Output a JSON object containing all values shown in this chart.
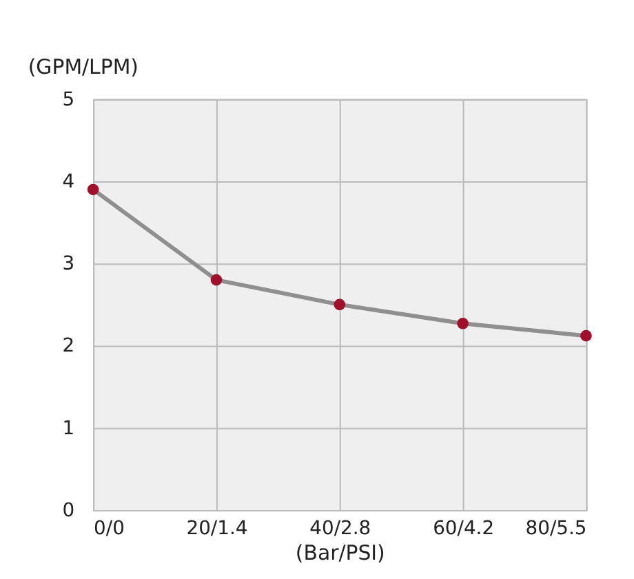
{
  "chart_data": {
    "type": "line",
    "xlabel": "(Bar/PSI)",
    "ylabel": "(GPM/LPM)",
    "categories": [
      "0/0",
      "20/1.4",
      "40/2.8",
      "60/4.2",
      "80/5.5"
    ],
    "series": [
      {
        "color": "#a0102a",
        "values": [
          3.9,
          2.8,
          2.5,
          2.27,
          2.12
        ]
      }
    ],
    "ylim": [
      0,
      5
    ],
    "yticks": [
      0,
      1,
      2,
      3,
      4,
      5
    ],
    "grid": true,
    "marker": "circle",
    "line_style": "solid"
  }
}
